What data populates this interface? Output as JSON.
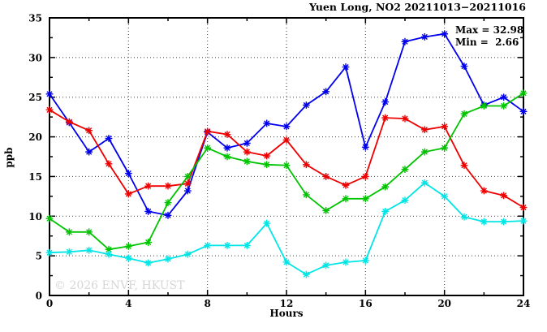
{
  "chart_data": {
    "type": "line",
    "title": "Yuen Long, NO2 20211013−20211016",
    "xlabel": "Hours",
    "ylabel": "ppb",
    "xlim": [
      0,
      24
    ],
    "ylim": [
      0,
      35
    ],
    "x_major_ticks": [
      0,
      4,
      8,
      12,
      16,
      20,
      24
    ],
    "x_minor_ticks": [
      2,
      6,
      10,
      14,
      18,
      22
    ],
    "y_major_ticks": [
      0,
      5,
      10,
      15,
      20,
      25,
      30,
      35
    ],
    "y_minor_ticks": [
      2.5,
      7.5,
      12.5,
      17.5,
      22.5,
      27.5,
      32.5
    ],
    "grid": "dotted lines at major ticks, both axes",
    "legend_position": "top-right inside plot",
    "legend": {
      "max_text": "Max = 32.98",
      "min_text": "Min =  2.66"
    },
    "stats": {
      "max": 32.98,
      "min": 2.66
    },
    "watermark": "© 2026 ENVF, HKUST",
    "x": [
      0,
      1,
      2,
      3,
      4,
      5,
      6,
      7,
      8,
      9,
      10,
      11,
      12,
      13,
      14,
      15,
      16,
      17,
      18,
      19,
      20,
      21,
      22,
      23,
      24
    ],
    "series": [
      {
        "name": "blue",
        "color": "#0000ee",
        "marker": "star",
        "values": [
          25.4,
          21.8,
          18.1,
          19.8,
          15.4,
          10.6,
          10.1,
          13.2,
          20.6,
          18.6,
          19.2,
          21.7,
          21.3,
          24.0,
          25.7,
          28.8,
          18.7,
          24.4,
          32.0,
          32.6,
          32.98,
          28.9,
          24.0,
          25.0,
          23.2
        ]
      },
      {
        "name": "red",
        "color": "#ee0000",
        "marker": "star",
        "values": [
          23.4,
          21.9,
          20.8,
          16.6,
          12.8,
          13.8,
          13.8,
          14.1,
          20.7,
          20.3,
          18.1,
          17.6,
          19.6,
          16.5,
          15.0,
          13.9,
          15.0,
          22.4,
          22.3,
          20.9,
          21.3,
          16.4,
          13.2,
          12.6,
          11.1
        ]
      },
      {
        "name": "green",
        "color": "#00c400",
        "marker": "star",
        "values": [
          9.7,
          8.0,
          8.0,
          5.8,
          6.2,
          6.7,
          11.7,
          15.0,
          18.6,
          17.5,
          16.9,
          16.5,
          16.4,
          12.7,
          10.7,
          12.2,
          12.2,
          13.7,
          15.9,
          18.1,
          18.6,
          22.9,
          23.9,
          23.9,
          25.5
        ]
      },
      {
        "name": "cyan",
        "color": "#00e6e6",
        "marker": "star",
        "values": [
          5.4,
          5.5,
          5.7,
          5.2,
          4.7,
          4.1,
          4.6,
          5.2,
          6.3,
          6.3,
          6.3,
          9.1,
          4.2,
          2.66,
          3.8,
          4.2,
          4.4,
          10.6,
          12.0,
          14.2,
          12.5,
          9.9,
          9.3,
          9.3,
          9.4
        ]
      }
    ]
  }
}
